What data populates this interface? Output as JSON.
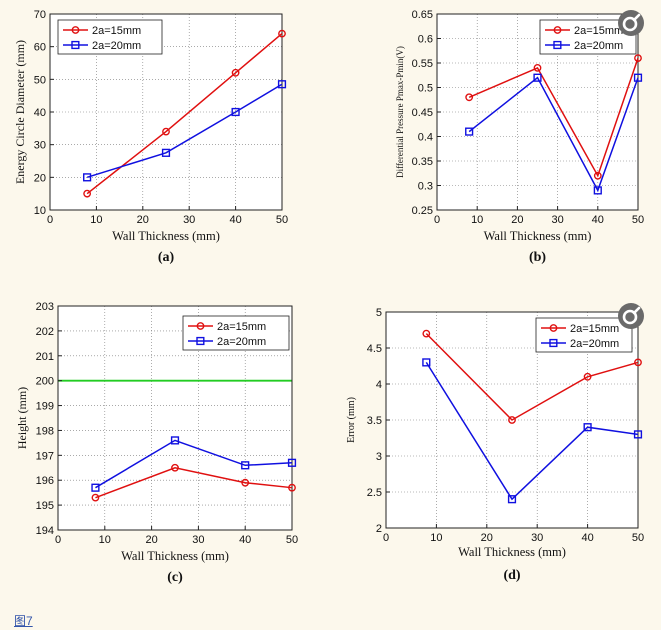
{
  "figure_link": "图7",
  "zoom_icon": "zoom-icon",
  "chart_data": [
    {
      "type": "line",
      "panel_label": "(a)",
      "title": "",
      "xlabel": "Wall Thickness (mm)",
      "ylabel": "Energy Circle Diameter (mm)",
      "xlim": [
        0,
        50
      ],
      "ylim": [
        10,
        70
      ],
      "xticks": [
        0,
        10,
        20,
        30,
        40,
        50
      ],
      "yticks": [
        10,
        20,
        30,
        40,
        50,
        60,
        70
      ],
      "grid": true,
      "legend_position": "top-left",
      "series": [
        {
          "name": "2a=15mm",
          "color": "#e01010",
          "marker": "circle",
          "x": [
            8,
            25,
            40,
            50
          ],
          "values": [
            15,
            34,
            52,
            64
          ]
        },
        {
          "name": "2a=20mm",
          "color": "#1010e0",
          "marker": "square",
          "x": [
            8,
            25,
            40,
            50
          ],
          "values": [
            20,
            27.5,
            40,
            48.5
          ]
        }
      ]
    },
    {
      "type": "line",
      "panel_label": "(b)",
      "title": "",
      "xlabel": "Wall Thickness (mm)",
      "ylabel": "Differential Pressure Pmax-Pmin(V)",
      "xlim": [
        0,
        50
      ],
      "ylim": [
        0.25,
        0.65
      ],
      "xticks": [
        0,
        10,
        20,
        30,
        40,
        50
      ],
      "yticks": [
        0.25,
        0.3,
        0.35,
        0.4,
        0.45,
        0.5,
        0.55,
        0.6,
        0.65
      ],
      "grid": true,
      "legend_position": "top-right",
      "series": [
        {
          "name": "2a=15mm",
          "color": "#e01010",
          "marker": "circle",
          "x": [
            8,
            25,
            40,
            50
          ],
          "values": [
            0.48,
            0.54,
            0.32,
            0.56
          ]
        },
        {
          "name": "2a=20mm",
          "color": "#1010e0",
          "marker": "square",
          "x": [
            8,
            25,
            40,
            50
          ],
          "values": [
            0.41,
            0.52,
            0.29,
            0.52
          ]
        }
      ]
    },
    {
      "type": "line",
      "panel_label": "(c)",
      "title": "",
      "xlabel": "Wall Thickness (mm)",
      "ylabel": "Height (mm)",
      "xlim": [
        0,
        50
      ],
      "ylim": [
        194,
        203
      ],
      "xticks": [
        0,
        10,
        20,
        30,
        40,
        50
      ],
      "yticks": [
        194,
        195,
        196,
        197,
        198,
        199,
        200,
        201,
        202,
        203
      ],
      "grid": true,
      "legend_position": "top-right",
      "reference_line": {
        "y": 200,
        "color": "#22cc22"
      },
      "series": [
        {
          "name": "2a=15mm",
          "color": "#e01010",
          "marker": "circle",
          "x": [
            8,
            25,
            40,
            50
          ],
          "values": [
            195.3,
            196.5,
            195.9,
            195.7
          ]
        },
        {
          "name": "2a=20mm",
          "color": "#1010e0",
          "marker": "square",
          "x": [
            8,
            25,
            40,
            50
          ],
          "values": [
            195.7,
            197.6,
            196.6,
            196.7
          ]
        }
      ]
    },
    {
      "type": "line",
      "panel_label": "(d)",
      "title": "",
      "xlabel": "Wall Thickness (mm)",
      "ylabel": "Error (mm)",
      "xlim": [
        0,
        50
      ],
      "ylim": [
        2,
        5
      ],
      "xticks": [
        0,
        10,
        20,
        30,
        40,
        50
      ],
      "yticks": [
        2,
        2.5,
        3,
        3.5,
        4,
        4.5,
        5
      ],
      "grid": true,
      "legend_position": "top-right",
      "series": [
        {
          "name": "2a=15mm",
          "color": "#e01010",
          "marker": "circle",
          "x": [
            8,
            25,
            40,
            50
          ],
          "values": [
            4.7,
            3.5,
            4.1,
            4.3
          ]
        },
        {
          "name": "2a=20mm",
          "color": "#1010e0",
          "marker": "square",
          "x": [
            8,
            25,
            40,
            50
          ],
          "values": [
            4.3,
            2.4,
            3.4,
            3.3
          ]
        }
      ]
    }
  ]
}
